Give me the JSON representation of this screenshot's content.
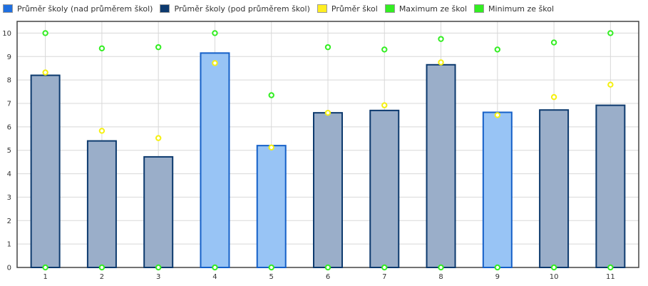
{
  "colors": {
    "above_fill": "#98c4f5",
    "above_stroke": "#1560c8",
    "below_fill": "#9aaec9",
    "below_stroke": "#0d3a6e",
    "avg": "#f5f010",
    "max": "#33ee22",
    "min": "#33ee22",
    "grid": "#d8d8d8",
    "axis": "#444444"
  },
  "legend": [
    {
      "label": "Průměr školy (nad průměrem škol)",
      "swatch": "#1f6fe0"
    },
    {
      "label": "Průměr školy (pod průměrem škol)",
      "swatch": "#0d3a6e"
    },
    {
      "label": "Průměr škol",
      "swatch": "#ffee22"
    },
    {
      "label": "Maximum ze škol",
      "swatch": "#33ee22"
    },
    {
      "label": "Minimum ze škol",
      "swatch": "#33ee22"
    }
  ],
  "chart_data": {
    "type": "bar",
    "categories": [
      "1",
      "2",
      "3",
      "4",
      "5",
      "6",
      "7",
      "8",
      "9",
      "10",
      "11"
    ],
    "ylim": [
      0,
      10.5
    ],
    "yticks": [
      "0",
      "1",
      "2",
      "3",
      "4",
      "5",
      "6",
      "7",
      "8",
      "9",
      "10"
    ],
    "grid": true,
    "legend_position": "top-left",
    "series": [
      {
        "name": "Průměr školy (nad průměrem škol)",
        "kind": "bar",
        "values": [
          null,
          null,
          null,
          9.15,
          5.2,
          null,
          null,
          null,
          6.62,
          null,
          null
        ]
      },
      {
        "name": "Průměr školy (pod průměrem škol)",
        "kind": "bar",
        "values": [
          8.2,
          5.4,
          4.72,
          null,
          null,
          6.6,
          6.7,
          8.65,
          null,
          6.72,
          6.92
        ]
      },
      {
        "name": "Průměr škol",
        "kind": "point",
        "values": [
          8.32,
          5.83,
          5.52,
          8.72,
          5.12,
          6.6,
          6.92,
          8.75,
          6.5,
          7.27,
          7.8
        ]
      },
      {
        "name": "Maximum ze škol",
        "kind": "point",
        "values": [
          10.0,
          9.35,
          9.4,
          10.0,
          7.35,
          9.4,
          9.3,
          9.75,
          9.3,
          9.6,
          10.0
        ]
      },
      {
        "name": "Minimum ze škol",
        "kind": "point",
        "values": [
          0,
          0,
          0,
          0,
          0,
          0,
          0,
          0,
          0,
          0,
          0
        ]
      }
    ]
  }
}
